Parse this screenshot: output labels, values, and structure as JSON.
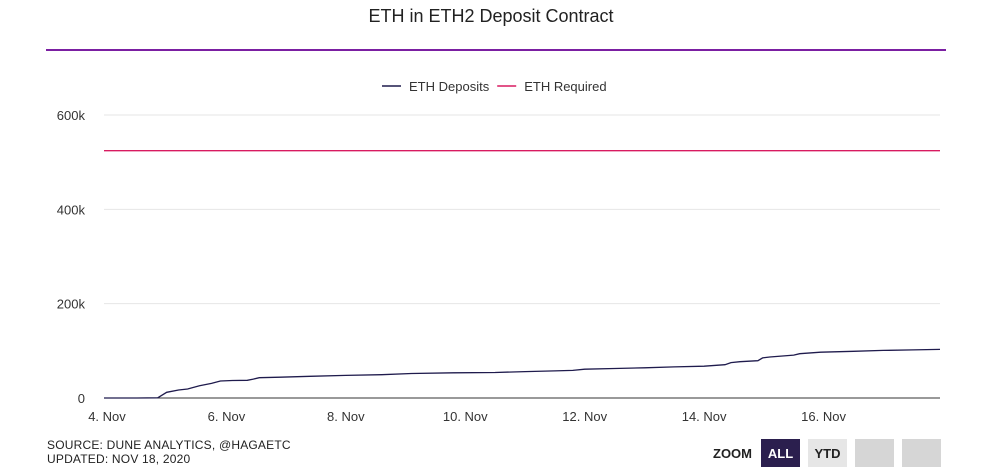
{
  "chart_data": {
    "type": "line",
    "title": "ETH in ETH2 Deposit Contract",
    "xlabel": "",
    "ylabel": "",
    "x_tick_labels": [
      "4. Nov",
      "6. Nov",
      "8. Nov",
      "10. Nov",
      "12. Nov",
      "14. Nov",
      "16. Nov"
    ],
    "x_range_days": [
      3.95,
      17.95
    ],
    "y_tick_labels": [
      "600k",
      "400k",
      "200k",
      "0"
    ],
    "y_ticks": [
      600000,
      400000,
      200000,
      0
    ],
    "ylim": [
      0,
      600000
    ],
    "grid": true,
    "legend_position": "top-center",
    "series": [
      {
        "name": "ETH Deposits",
        "color": "#1f1b4d",
        "points": [
          [
            3.95,
            0
          ],
          [
            4.5,
            0
          ],
          [
            4.85,
            500
          ],
          [
            5.0,
            12000
          ],
          [
            5.2,
            17000
          ],
          [
            5.35,
            19000
          ],
          [
            5.55,
            26000
          ],
          [
            5.75,
            31000
          ],
          [
            5.9,
            36000
          ],
          [
            6.1,
            37000
          ],
          [
            6.35,
            37500
          ],
          [
            6.45,
            40000
          ],
          [
            6.55,
            43000
          ],
          [
            6.9,
            44000
          ],
          [
            7.4,
            46000
          ],
          [
            8.0,
            48000
          ],
          [
            8.6,
            49500
          ],
          [
            9.1,
            52000
          ],
          [
            9.8,
            53500
          ],
          [
            10.5,
            54000
          ],
          [
            11.0,
            56000
          ],
          [
            11.5,
            57500
          ],
          [
            11.8,
            58500
          ],
          [
            12.0,
            61000
          ],
          [
            12.5,
            62500
          ],
          [
            13.0,
            64000
          ],
          [
            13.5,
            66000
          ],
          [
            14.0,
            67500
          ],
          [
            14.35,
            70500
          ],
          [
            14.45,
            75000
          ],
          [
            14.6,
            77000
          ],
          [
            14.9,
            79000
          ],
          [
            14.98,
            85000
          ],
          [
            15.1,
            87000
          ],
          [
            15.5,
            91000
          ],
          [
            15.6,
            94000
          ],
          [
            15.95,
            97000
          ],
          [
            16.5,
            99000
          ],
          [
            17.0,
            101000
          ],
          [
            17.5,
            102000
          ],
          [
            17.95,
            103000
          ]
        ]
      },
      {
        "name": "ETH Required",
        "color": "#d81b60",
        "points": [
          [
            3.95,
            524288
          ],
          [
            17.95,
            524288
          ]
        ]
      }
    ]
  },
  "footer": {
    "source": "SOURCE: DUNE ANALYTICS, @HAGAETC",
    "updated": "UPDATED: NOV 18, 2020"
  },
  "zoom": {
    "label": "ZOOM",
    "buttons": [
      {
        "label": "ALL",
        "state": "active"
      },
      {
        "label": "YTD",
        "state": "inactive"
      },
      {
        "label": "",
        "state": "blank"
      },
      {
        "label": "",
        "state": "blank"
      }
    ]
  }
}
